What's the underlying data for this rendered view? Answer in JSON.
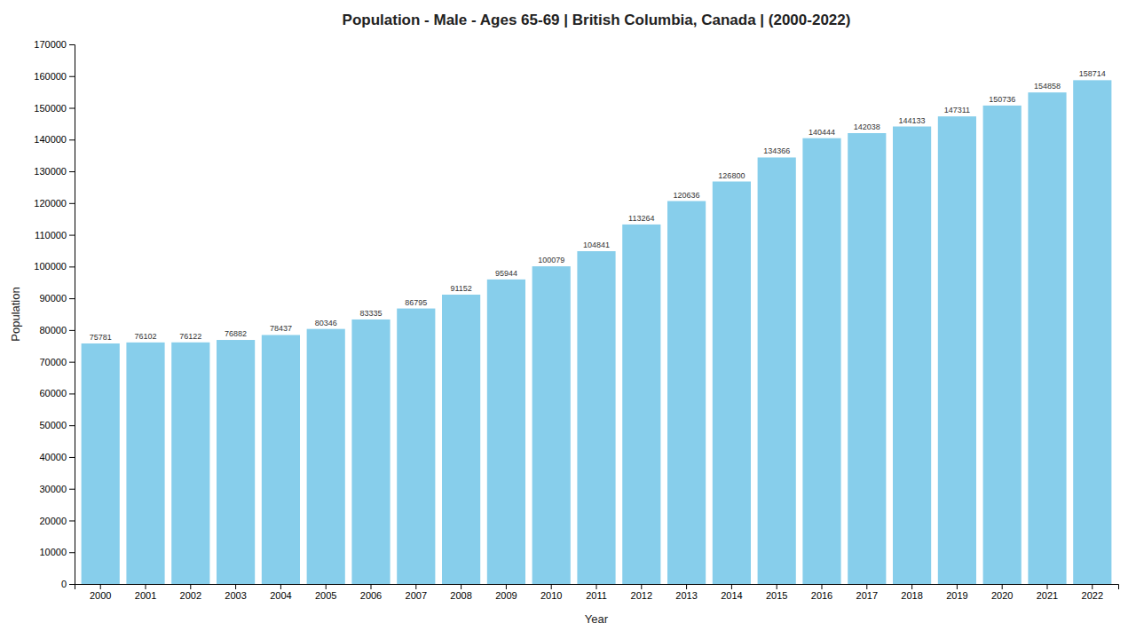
{
  "chart_data": {
    "type": "bar",
    "title": "Population - Male - Ages 65-69 | British Columbia, Canada |  (2000-2022)",
    "xlabel": "Year",
    "ylabel": "Population",
    "categories": [
      "2000",
      "2001",
      "2002",
      "2003",
      "2004",
      "2005",
      "2006",
      "2007",
      "2008",
      "2009",
      "2010",
      "2011",
      "2012",
      "2013",
      "2014",
      "2015",
      "2016",
      "2017",
      "2018",
      "2019",
      "2020",
      "2021",
      "2022"
    ],
    "values": [
      75781,
      76102,
      76122,
      76882,
      78437,
      80346,
      83335,
      86795,
      91152,
      95944,
      100079,
      104841,
      113264,
      120636,
      126800,
      134366,
      140444,
      142038,
      144133,
      147311,
      150736,
      154858,
      158714
    ],
    "color": "#87CEEB",
    "ylim": [
      0,
      170000
    ],
    "yticks": [
      0,
      10000,
      20000,
      30000,
      40000,
      50000,
      60000,
      70000,
      80000,
      90000,
      100000,
      110000,
      120000,
      130000,
      140000,
      150000,
      160000,
      170000
    ],
    "grid": false,
    "data_labels": true
  }
}
